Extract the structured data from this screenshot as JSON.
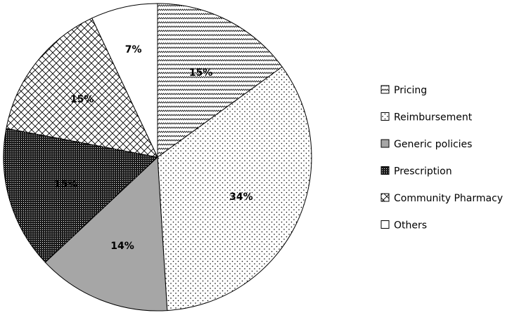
{
  "chart_data": {
    "type": "pie",
    "categories": [
      "Pricing",
      "Reimbursement",
      "Generic policies",
      "Prescription",
      "Community Pharmacy",
      "Others"
    ],
    "values": [
      15,
      34,
      14,
      15,
      15,
      7
    ],
    "labels": [
      "15%",
      "34%",
      "14%",
      "15%",
      "15%",
      "7%"
    ],
    "legend_position": "right",
    "start_angle_deg": 0,
    "direction": "clockwise"
  }
}
